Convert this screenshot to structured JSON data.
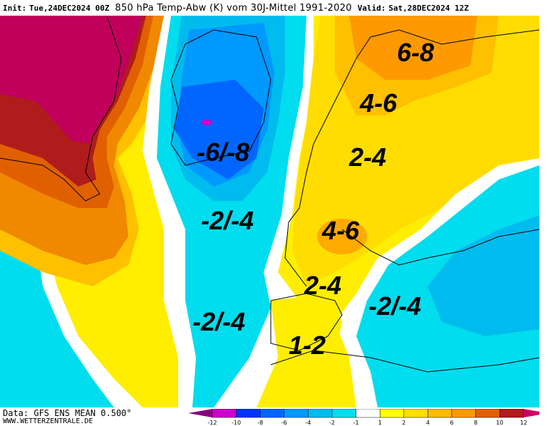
{
  "header": {
    "init_label": "Init:",
    "init": "Tue,24DEC2024 00Z",
    "title": "850 hPa Temp-Abw (K) vom 30J-Mittel 1991-2020",
    "valid_label": "Valid:",
    "valid": "Sat,28DEC2024 12Z"
  },
  "map_labels": [
    {
      "text": "6-8"
    },
    {
      "text": "4-6"
    },
    {
      "text": "2-4"
    },
    {
      "text": "-6/-8"
    },
    {
      "text": "-2/-4"
    },
    {
      "text": "4-6"
    },
    {
      "text": "2-4"
    },
    {
      "text": "-2/-4"
    },
    {
      "text": "-2/-4"
    },
    {
      "text": "1-2"
    }
  ],
  "footer": {
    "data_source": "Data: GFS ENS MEAN 0.500°",
    "website": "WWW.WETTERZENTRALE.DE"
  },
  "legend": {
    "ticks": [
      "-12",
      "-10",
      "-8",
      "-6",
      "-4",
      "-2",
      "-1",
      "1",
      "2",
      "4",
      "6",
      "8",
      "10",
      "12"
    ],
    "colors": [
      "#8a0080",
      "#cc00cc",
      "#0033ff",
      "#0066ff",
      "#0099ff",
      "#00bbee",
      "#00ddee",
      "#ffffff",
      "#ffff00",
      "#ffdd00",
      "#ffbb00",
      "#ff9900",
      "#e06000",
      "#b01c1c",
      "#cc0066"
    ]
  }
}
